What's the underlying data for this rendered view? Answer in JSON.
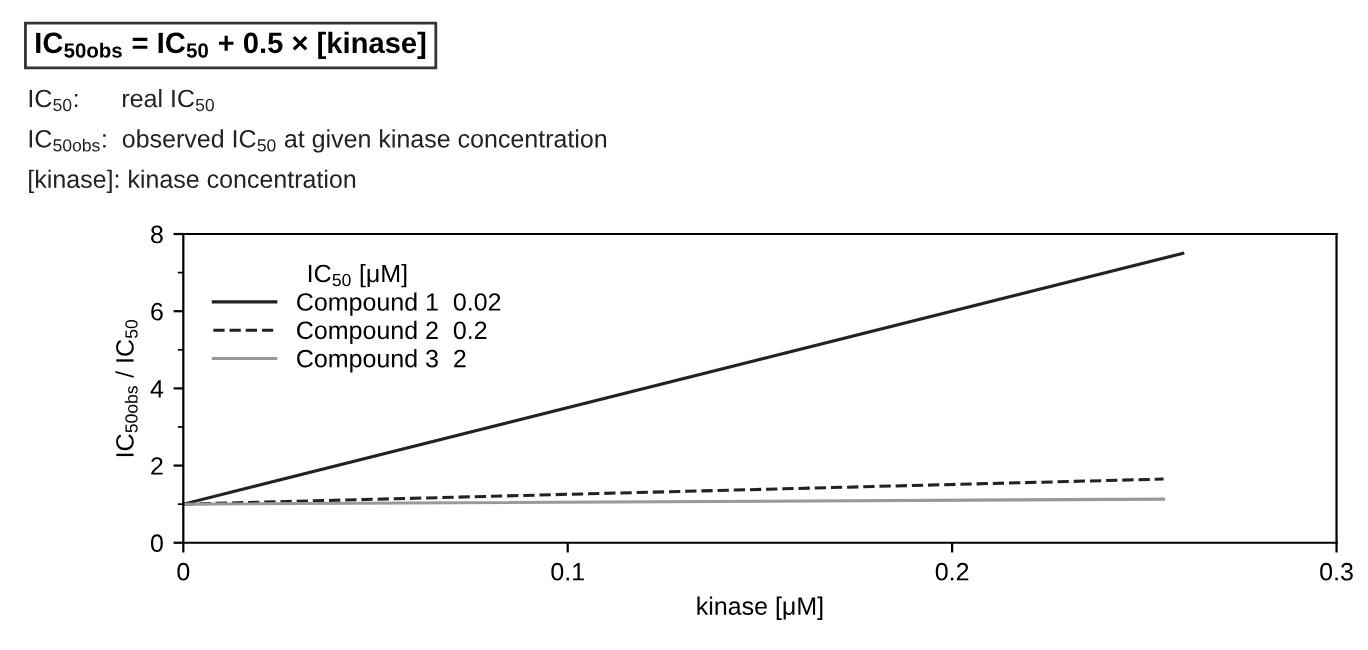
{
  "chart_data": {
    "type": "line",
    "title": "IC$_{50obs}$ = IC$_{50}$ + 0.5 × [kinase]",
    "annotations": [
      "IC$_{50}$:      real IC$_{50}$",
      "IC$_{50obs}$:  observed IC$_{50}$ at given kinase concentration",
      "[kinase]: kinase concentration"
    ],
    "xlabel": "kinase [μM]",
    "ylabel": "IC$_{50obs}$ / IC$_{50}$",
    "legend_title": "IC$_{50}$ [μM]",
    "series": [
      {
        "name": "Compound 1  0.02",
        "color": "#222222",
        "line_style": "solid",
        "x": [
          0,
          0.26
        ],
        "values": [
          1,
          7.5
        ]
      },
      {
        "name": "Compound 2  0.2",
        "color": "#222222",
        "line_style": "dashed",
        "x": [
          0,
          0.255
        ],
        "values": [
          1,
          1.65
        ]
      },
      {
        "name": "Compound 3  2",
        "color": "#999999",
        "line_style": "solid",
        "x": [
          0,
          0.255
        ],
        "values": [
          1,
          1.13
        ]
      }
    ],
    "xlim": [
      0,
      0.3
    ],
    "xticks": [
      0,
      0.1,
      0.2,
      0.3
    ],
    "ylim": [
      0,
      8
    ],
    "yticks": [
      0,
      2,
      4,
      6,
      8
    ],
    "grid": false,
    "legend": "top left",
    "marker": "none"
  }
}
